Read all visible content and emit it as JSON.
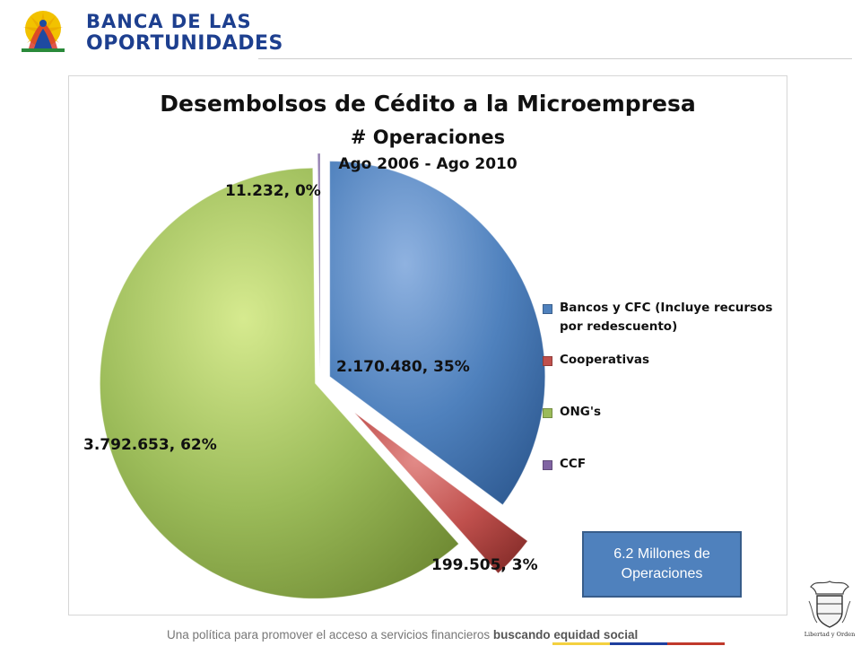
{
  "header": {
    "brand_line1": "BANCA DE LAS",
    "brand_line2": "OPORTUNIDADES"
  },
  "chart_data": {
    "type": "pie",
    "title": "Desembolsos de Cédito a la Microempresa",
    "subtitle": "# Operaciones",
    "period": "Ago 2006 - Ago 2010",
    "series": [
      {
        "name": "Bancos y CFC (Incluye recursos por redescuento)",
        "value": 2170480,
        "percent": 35,
        "label": "2.170.480, 35%",
        "color": "#4f81bd"
      },
      {
        "name": "Cooperativas",
        "value": 199505,
        "percent": 3,
        "label": "199.505, 3%",
        "color": "#c0504d"
      },
      {
        "name": "ONG's",
        "value": 3792653,
        "percent": 62,
        "label": "3.792.653, 62%",
        "color": "#9bbb59"
      },
      {
        "name": "CCF",
        "value": 11232,
        "percent": 0,
        "label": "11.232, 0%",
        "color": "#8064a2"
      }
    ],
    "exploded": true,
    "legend_position": "right"
  },
  "callout": {
    "line1": "6.2 Millones de",
    "line2": "Operaciones",
    "color": "#4f81bd"
  },
  "footer": {
    "text": "Una política para promover el acceso a servicios financieros ",
    "bold_text": "buscando equidad social",
    "stripe_colors": [
      "#f4d03f",
      "#1f3f9e",
      "#c0392b"
    ]
  },
  "emblem": {
    "caption": "Libertad y Orden"
  }
}
